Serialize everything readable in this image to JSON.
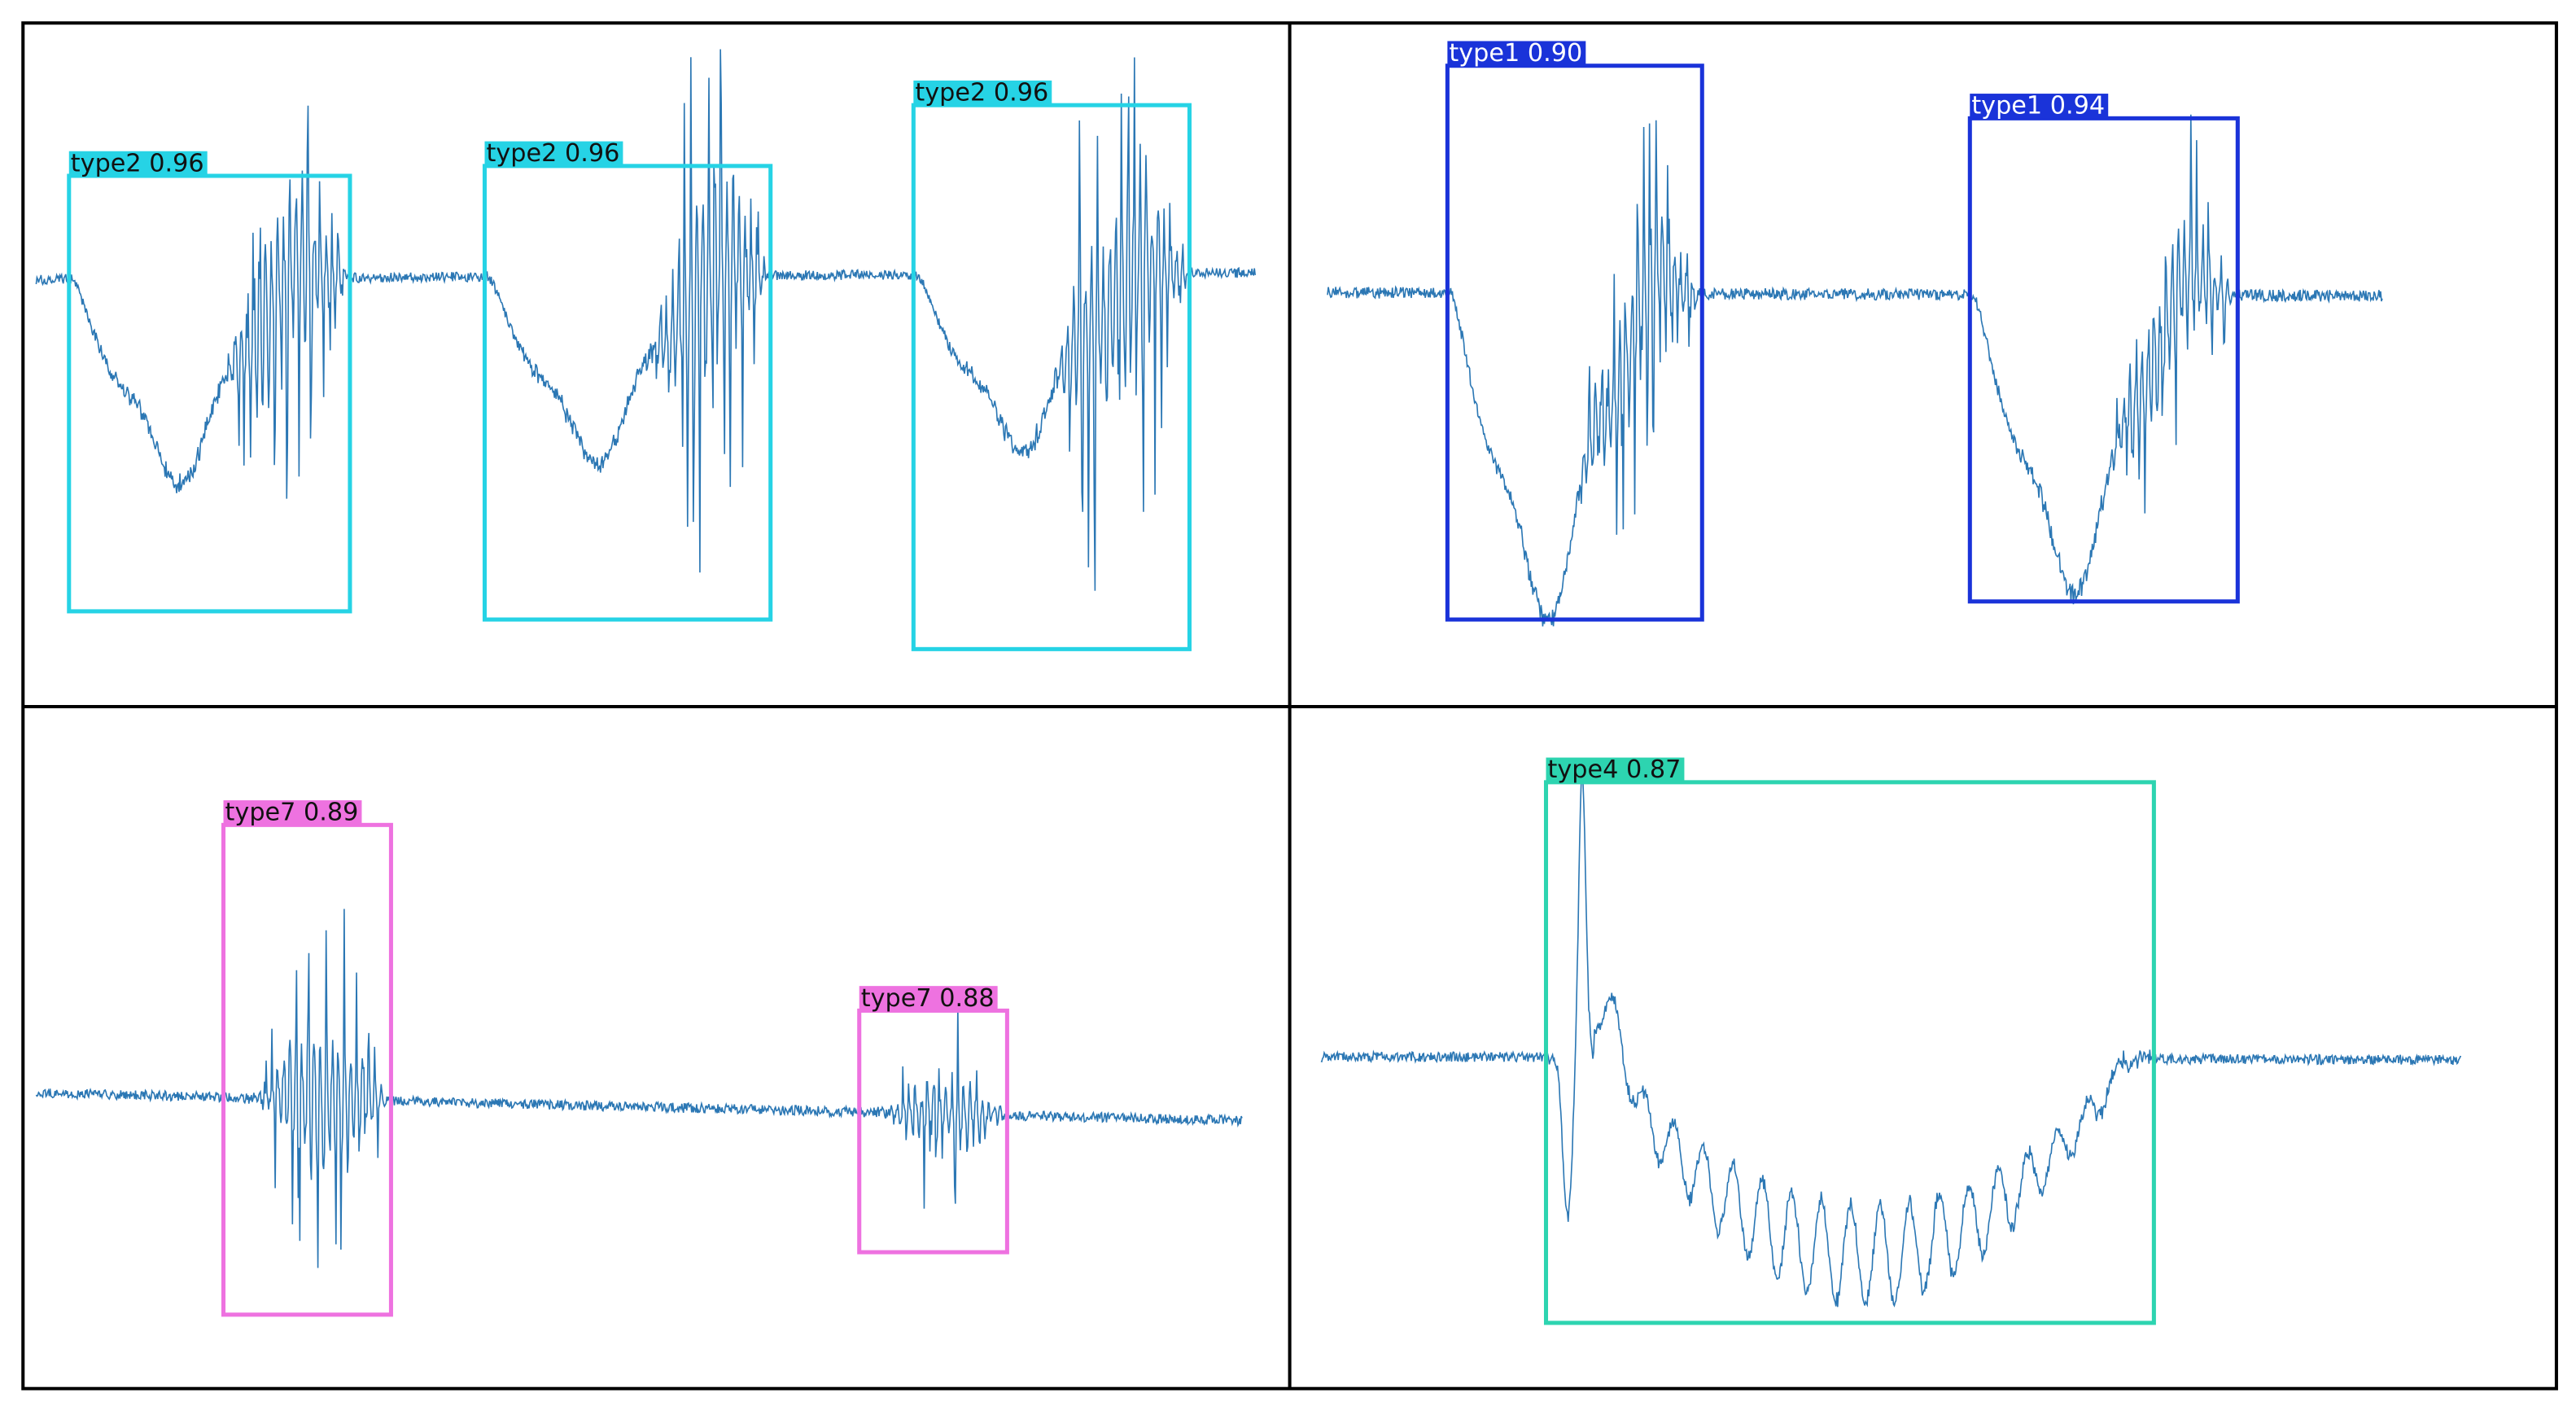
{
  "panels": [
    {
      "detections": [
        {
          "label": "type2 0.96"
        },
        {
          "label": "type2 0.96"
        },
        {
          "label": "type2 0.96"
        }
      ]
    },
    {
      "detections": [
        {
          "label": "type1 0.90"
        },
        {
          "label": "type1 0.94"
        }
      ]
    },
    {
      "detections": [
        {
          "label": "type7 0.89"
        },
        {
          "label": "type7 0.88"
        }
      ]
    },
    {
      "detections": [
        {
          "label": "type4 0.87"
        }
      ]
    }
  ]
}
